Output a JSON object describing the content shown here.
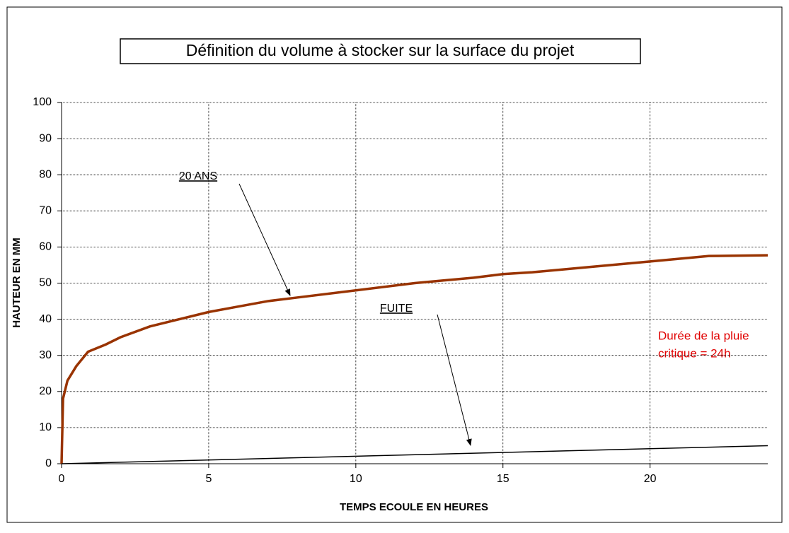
{
  "chart_data": {
    "type": "line",
    "title": "Définition du volume à stocker sur la surface du projet",
    "xlabel": "TEMPS ECOULE EN HEURES",
    "ylabel": "HAUTEUR EN MM",
    "xlim": [
      0,
      24
    ],
    "xticks": [
      0,
      5,
      10,
      15,
      20
    ],
    "ylim": [
      0,
      100
    ],
    "yticks": [
      0,
      10,
      20,
      30,
      40,
      50,
      60,
      70,
      80,
      90,
      100
    ],
    "grid": true,
    "series": [
      {
        "name": "20 ANS",
        "color": "#993300",
        "x": [
          0,
          0.05,
          0.2,
          0.5,
          0.9,
          1.5,
          2,
          3,
          4,
          5,
          6,
          7,
          8,
          10,
          12,
          14,
          15,
          16,
          18,
          20,
          22,
          24
        ],
        "values": [
          0,
          18,
          23,
          27,
          31,
          33,
          35,
          38,
          40,
          42,
          43.5,
          45,
          46,
          48,
          50,
          51.5,
          52.5,
          53,
          54.5,
          56,
          57.5,
          57.7
        ]
      },
      {
        "name": "FUITE",
        "color": "#000000",
        "x": [
          0,
          24
        ],
        "values": [
          0,
          5
        ]
      }
    ],
    "annotations": [
      "Durée de la pluie",
      "critique = 24h"
    ]
  }
}
